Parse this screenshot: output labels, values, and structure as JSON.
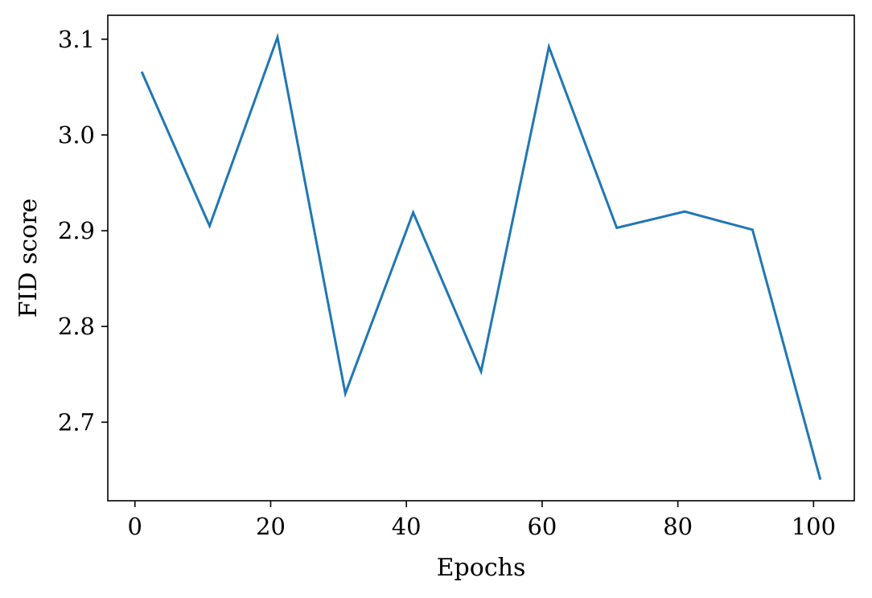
{
  "chart_data": {
    "type": "line",
    "title": "",
    "xlabel": "Epochs",
    "ylabel": "FID score",
    "xlim": [
      -4,
      106
    ],
    "ylim": [
      2.618,
      3.125
    ],
    "xticks": [
      0,
      20,
      40,
      60,
      80,
      100
    ],
    "yticks": [
      2.7,
      2.8,
      2.9,
      3.0,
      3.1
    ],
    "xtick_labels": [
      "0",
      "20",
      "40",
      "60",
      "80",
      "100"
    ],
    "ytick_labels": [
      "2.7",
      "2.8",
      "2.9",
      "3.0",
      "3.1"
    ],
    "grid": false,
    "legend": "none",
    "series": [
      {
        "color": "#1f77b4",
        "x": [
          1,
          11,
          21,
          31,
          41,
          51,
          61,
          71,
          81,
          91,
          101
        ],
        "y": [
          3.066,
          2.905,
          3.102,
          2.73,
          2.919,
          2.753,
          3.092,
          2.903,
          2.92,
          2.901,
          2.64
        ]
      }
    ]
  }
}
